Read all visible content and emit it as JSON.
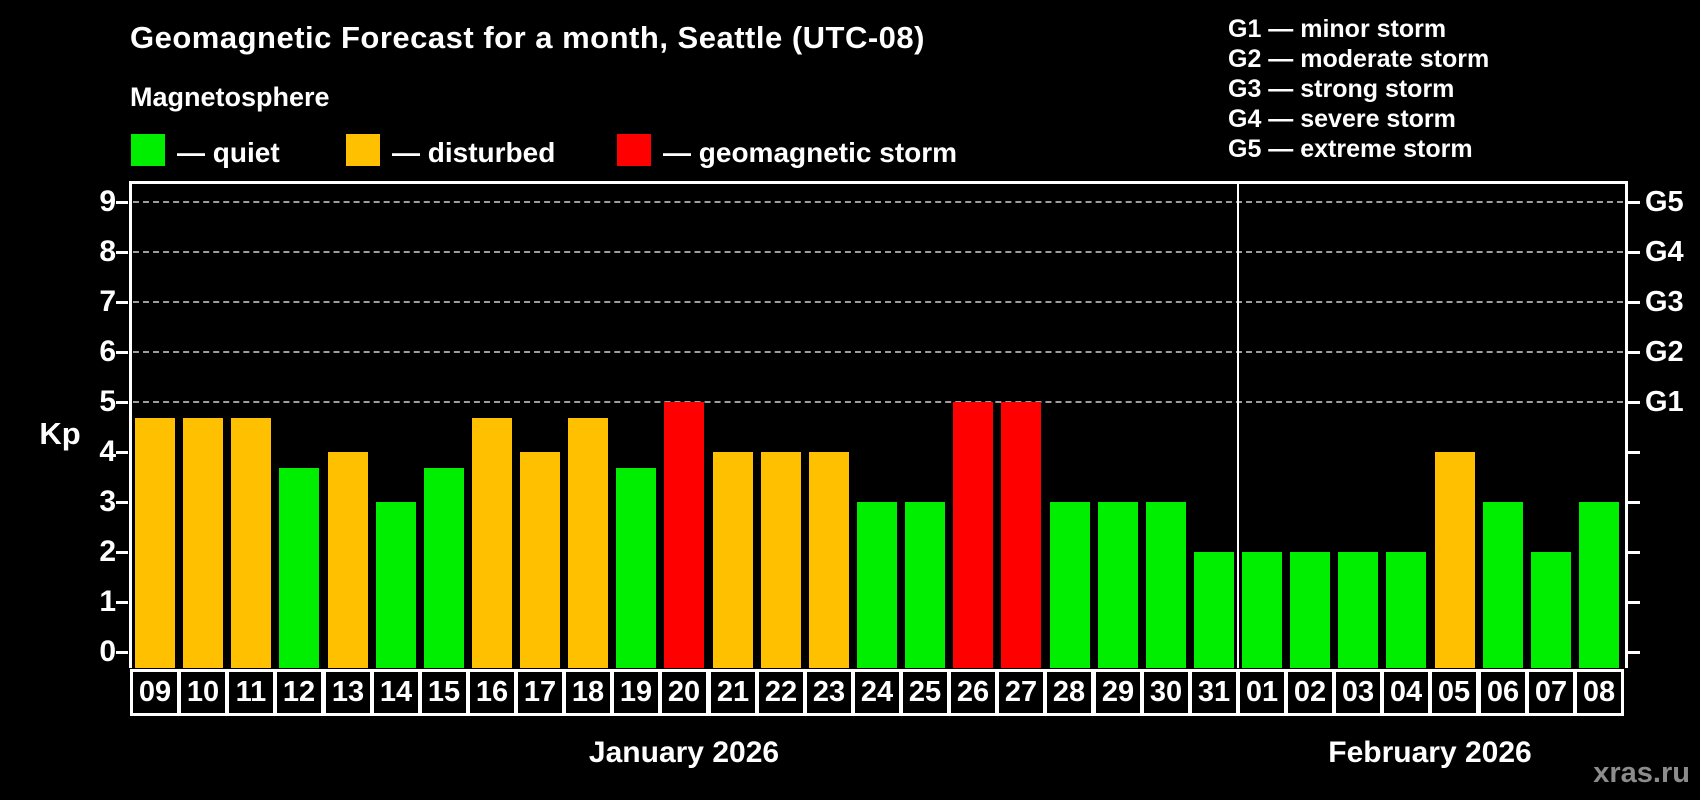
{
  "title": "Geomagnetic Forecast for a month, Seattle (UTC-08)",
  "legend": {
    "heading": "Magnetosphere",
    "items": [
      {
        "key": "quiet",
        "label": "— quiet",
        "color": "#00ee00"
      },
      {
        "key": "disturbed",
        "label": "— disturbed",
        "color": "#ffc000"
      },
      {
        "key": "storm",
        "label": "— geomagnetic storm",
        "color": "#ff0000"
      }
    ]
  },
  "storm_scale": [
    "G1 — minor storm",
    "G2 — moderate storm",
    "G3 — strong storm",
    "G4 — severe storm",
    "G5 — extreme storm"
  ],
  "axes": {
    "y_label": "Kp",
    "y_ticks": [
      "0",
      "1",
      "2",
      "3",
      "4",
      "5",
      "6",
      "7",
      "8",
      "9"
    ],
    "right_axis": [
      {
        "label": "G1",
        "kp": 5
      },
      {
        "label": "G2",
        "kp": 6
      },
      {
        "label": "G3",
        "kp": 7
      },
      {
        "label": "G4",
        "kp": 8
      },
      {
        "label": "G5",
        "kp": 9
      }
    ]
  },
  "months": [
    {
      "label": "January 2026",
      "days_shown": 23
    },
    {
      "label": "February 2026",
      "days_shown": 8
    }
  ],
  "watermark": "xras.ru",
  "colors": {
    "quiet": "#00ee00",
    "disturbed": "#ffc000",
    "storm": "#ff0000",
    "background": "#000000",
    "gridline": "#9e9e9e",
    "frame": "#ffffff"
  },
  "chart_data": {
    "type": "bar",
    "title": "Geomagnetic Forecast for a month, Seattle (UTC-08)",
    "ylabel": "Kp",
    "ylim": [
      0,
      9
    ],
    "gridlines_at": [
      5,
      6,
      7,
      8,
      9
    ],
    "legend_position": "top",
    "bars": [
      {
        "date": "09",
        "month_index": 0,
        "kp": 4.67,
        "status": "disturbed"
      },
      {
        "date": "10",
        "month_index": 0,
        "kp": 4.67,
        "status": "disturbed"
      },
      {
        "date": "11",
        "month_index": 0,
        "kp": 4.67,
        "status": "disturbed"
      },
      {
        "date": "12",
        "month_index": 0,
        "kp": 3.67,
        "status": "quiet"
      },
      {
        "date": "13",
        "month_index": 0,
        "kp": 4,
        "status": "disturbed"
      },
      {
        "date": "14",
        "month_index": 0,
        "kp": 3,
        "status": "quiet"
      },
      {
        "date": "15",
        "month_index": 0,
        "kp": 3.67,
        "status": "quiet"
      },
      {
        "date": "16",
        "month_index": 0,
        "kp": 4.67,
        "status": "disturbed"
      },
      {
        "date": "17",
        "month_index": 0,
        "kp": 4,
        "status": "disturbed"
      },
      {
        "date": "18",
        "month_index": 0,
        "kp": 4.67,
        "status": "disturbed"
      },
      {
        "date": "19",
        "month_index": 0,
        "kp": 3.67,
        "status": "quiet"
      },
      {
        "date": "20",
        "month_index": 0,
        "kp": 5,
        "status": "storm"
      },
      {
        "date": "21",
        "month_index": 0,
        "kp": 4,
        "status": "disturbed"
      },
      {
        "date": "22",
        "month_index": 0,
        "kp": 4,
        "status": "disturbed"
      },
      {
        "date": "23",
        "month_index": 0,
        "kp": 4,
        "status": "disturbed"
      },
      {
        "date": "24",
        "month_index": 0,
        "kp": 3,
        "status": "quiet"
      },
      {
        "date": "25",
        "month_index": 0,
        "kp": 3,
        "status": "quiet"
      },
      {
        "date": "26",
        "month_index": 0,
        "kp": 5,
        "status": "storm"
      },
      {
        "date": "27",
        "month_index": 0,
        "kp": 5,
        "status": "storm"
      },
      {
        "date": "28",
        "month_index": 0,
        "kp": 3,
        "status": "quiet"
      },
      {
        "date": "29",
        "month_index": 0,
        "kp": 3,
        "status": "quiet"
      },
      {
        "date": "30",
        "month_index": 0,
        "kp": 3,
        "status": "quiet"
      },
      {
        "date": "31",
        "month_index": 0,
        "kp": 2,
        "status": "quiet"
      },
      {
        "date": "01",
        "month_index": 1,
        "kp": 2,
        "status": "quiet"
      },
      {
        "date": "02",
        "month_index": 1,
        "kp": 2,
        "status": "quiet"
      },
      {
        "date": "03",
        "month_index": 1,
        "kp": 2,
        "status": "quiet"
      },
      {
        "date": "04",
        "month_index": 1,
        "kp": 2,
        "status": "quiet"
      },
      {
        "date": "05",
        "month_index": 1,
        "kp": 4,
        "status": "disturbed"
      },
      {
        "date": "06",
        "month_index": 1,
        "kp": 3,
        "status": "quiet"
      },
      {
        "date": "07",
        "month_index": 1,
        "kp": 2,
        "status": "quiet"
      },
      {
        "date": "08",
        "month_index": 1,
        "kp": 3,
        "status": "quiet"
      }
    ]
  }
}
